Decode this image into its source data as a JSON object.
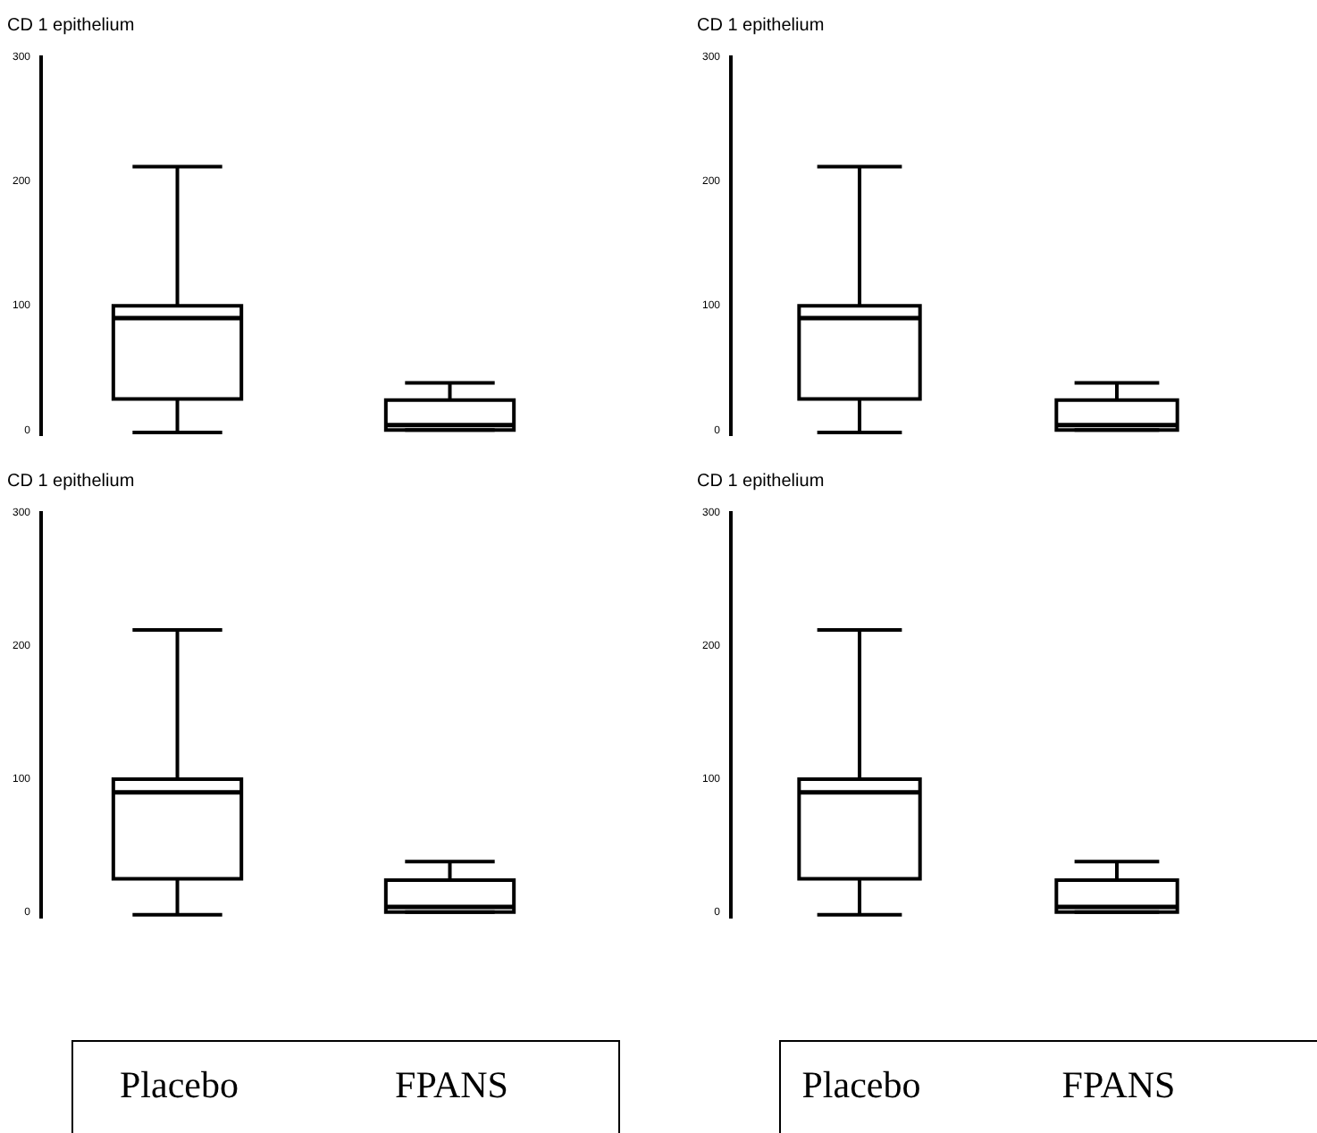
{
  "chart_data": [
    {
      "type": "box",
      "title": "CD 1 epithelium",
      "categories": [
        "Placebo",
        "FPANS"
      ],
      "color": "#000000",
      "ylim": [
        -4,
        300
      ],
      "yticks": [
        0,
        100,
        200,
        300
      ],
      "tick_labels": "y",
      "boxes": [
        {
          "low": -2,
          "q1": 25,
          "median": 90,
          "q3": 100,
          "high": 212
        },
        {
          "low": 0,
          "q1": 0,
          "median": 4,
          "q3": 24,
          "high": 38
        }
      ]
    },
    {
      "type": "box",
      "title": "CD 1 epithelium",
      "categories": [
        "Placebo",
        "FPANS"
      ],
      "color": "#000000",
      "ylim": [
        -4,
        300
      ],
      "yticks": [
        0,
        100,
        200,
        300
      ],
      "tick_labels": "y",
      "boxes": [
        {
          "low": -2,
          "q1": 25,
          "median": 90,
          "q3": 100,
          "high": 212
        },
        {
          "low": 0,
          "q1": 0,
          "median": 4,
          "q3": 24,
          "high": 38
        }
      ]
    },
    {
      "type": "box",
      "title": "CD 1 epithelium",
      "categories": [
        "Placebo",
        "FPANS"
      ],
      "color": "#000000",
      "ylim": [
        -4,
        300
      ],
      "yticks": [
        0,
        100,
        200,
        300
      ],
      "boxes": [
        {
          "low": -2,
          "q1": 25,
          "median": 90,
          "q3": 100,
          "high": 212
        },
        {
          "low": 0,
          "q1": 0,
          "median": 4,
          "q3": 24,
          "high": 38
        }
      ]
    },
    {
      "type": "box",
      "title": "CD 1 epithelium",
      "categories": [
        "Placebo",
        "FPANS"
      ],
      "color": "#000000",
      "ylim": [
        -4,
        300
      ],
      "yticks": [
        0,
        100,
        200,
        300
      ],
      "boxes": [
        {
          "low": -2,
          "q1": 25,
          "median": 90,
          "q3": 100,
          "high": 212
        },
        {
          "low": 0,
          "q1": 0,
          "median": 4,
          "q3": 24,
          "high": 38
        }
      ]
    }
  ]
}
